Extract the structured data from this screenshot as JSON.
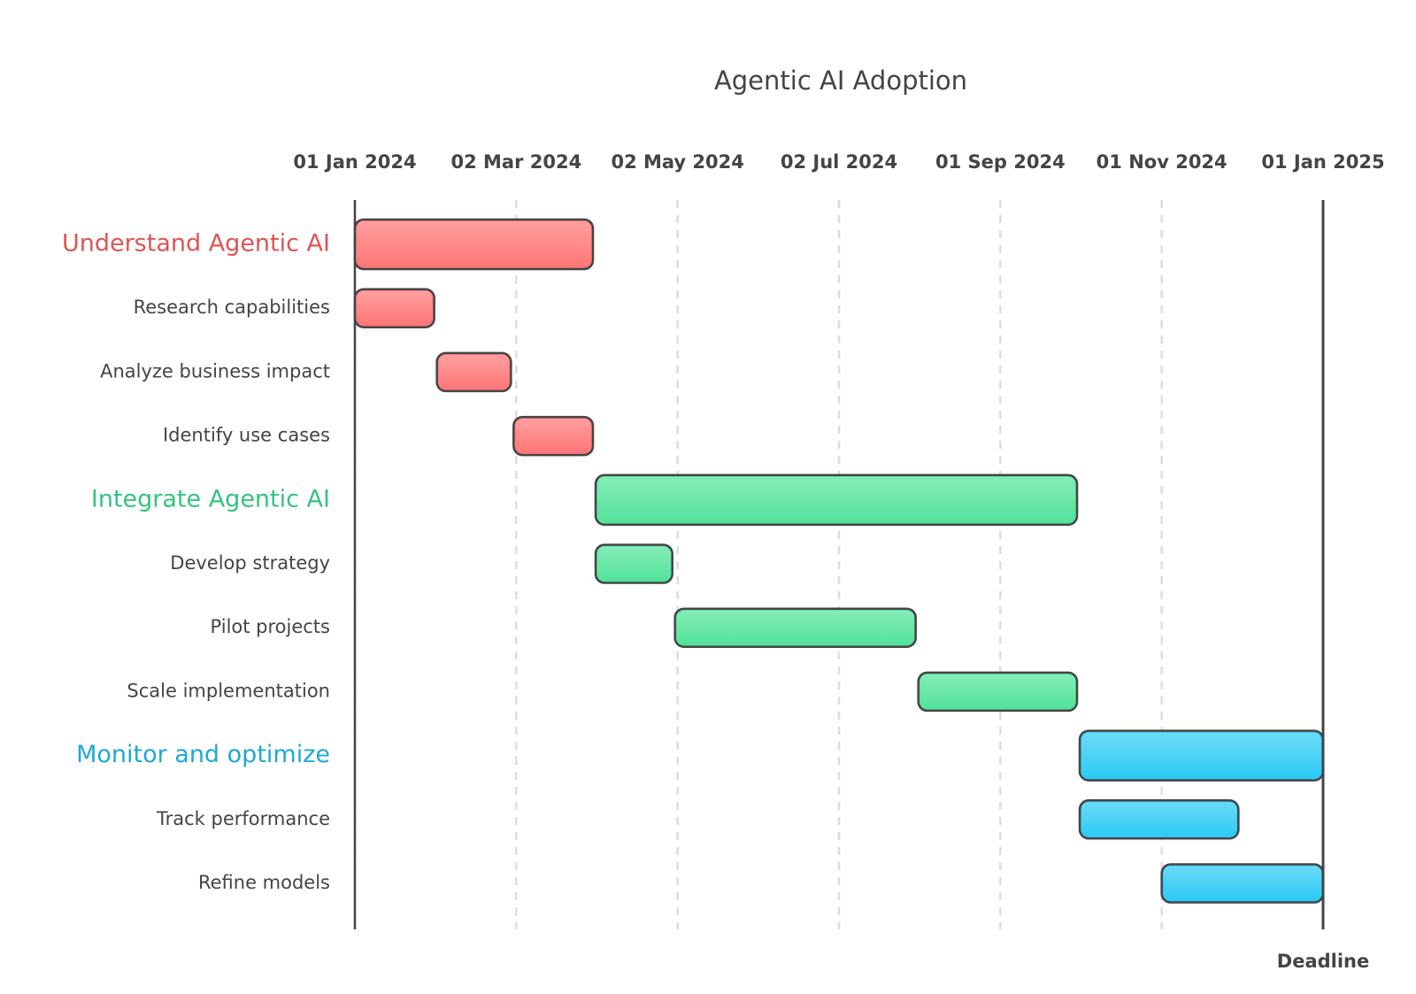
{
  "chart_data": {
    "type": "gantt",
    "title": "Agentic AI Adoption",
    "xlim": [
      "2024-01-01",
      "2025-01-01"
    ],
    "xticks": [
      {
        "value": "2024-01-01",
        "label": "01 Jan 2024"
      },
      {
        "value": "2024-03-02",
        "label": "02 Mar 2024"
      },
      {
        "value": "2024-05-02",
        "label": "02 May 2024"
      },
      {
        "value": "2024-07-02",
        "label": "02 Jul 2024"
      },
      {
        "value": "2024-09-01",
        "label": "01 Sep 2024"
      },
      {
        "value": "2024-11-01",
        "label": "01 Nov 2024"
      },
      {
        "value": "2025-01-01",
        "label": "01 Jan 2025"
      }
    ],
    "grid": true,
    "sections": [
      {
        "name": "Understand Agentic AI",
        "color": "#ff7676",
        "label_color": "#e05353",
        "start": "2024-01-01",
        "end": "2024-03-31",
        "tasks": [
          {
            "name": "Research capabilities",
            "start": "2024-01-01",
            "end": "2024-01-31"
          },
          {
            "name": "Analyze business impact",
            "start": "2024-02-01",
            "end": "2024-02-29"
          },
          {
            "name": "Identify use cases",
            "start": "2024-03-01",
            "end": "2024-03-31"
          }
        ]
      },
      {
        "name": "Integrate Agentic AI",
        "color": "#52e39a",
        "label_color": "#34c47f",
        "start": "2024-04-01",
        "end": "2024-09-30",
        "tasks": [
          {
            "name": "Develop strategy",
            "start": "2024-04-01",
            "end": "2024-04-30"
          },
          {
            "name": "Pilot projects",
            "start": "2024-05-01",
            "end": "2024-07-31"
          },
          {
            "name": "Scale implementation",
            "start": "2024-08-01",
            "end": "2024-09-30"
          }
        ]
      },
      {
        "name": "Monitor and optimize",
        "color": "#2ccaf5",
        "label_color": "#1fa8d6",
        "start": "2024-10-01",
        "end": "2025-01-01",
        "tasks": [
          {
            "name": "Track performance",
            "start": "2024-10-01",
            "end": "2024-11-30"
          },
          {
            "name": "Refine models",
            "start": "2024-11-01",
            "end": "2025-01-01"
          }
        ]
      }
    ],
    "deadline": {
      "date": "2025-01-01",
      "label": "Deadline"
    }
  }
}
